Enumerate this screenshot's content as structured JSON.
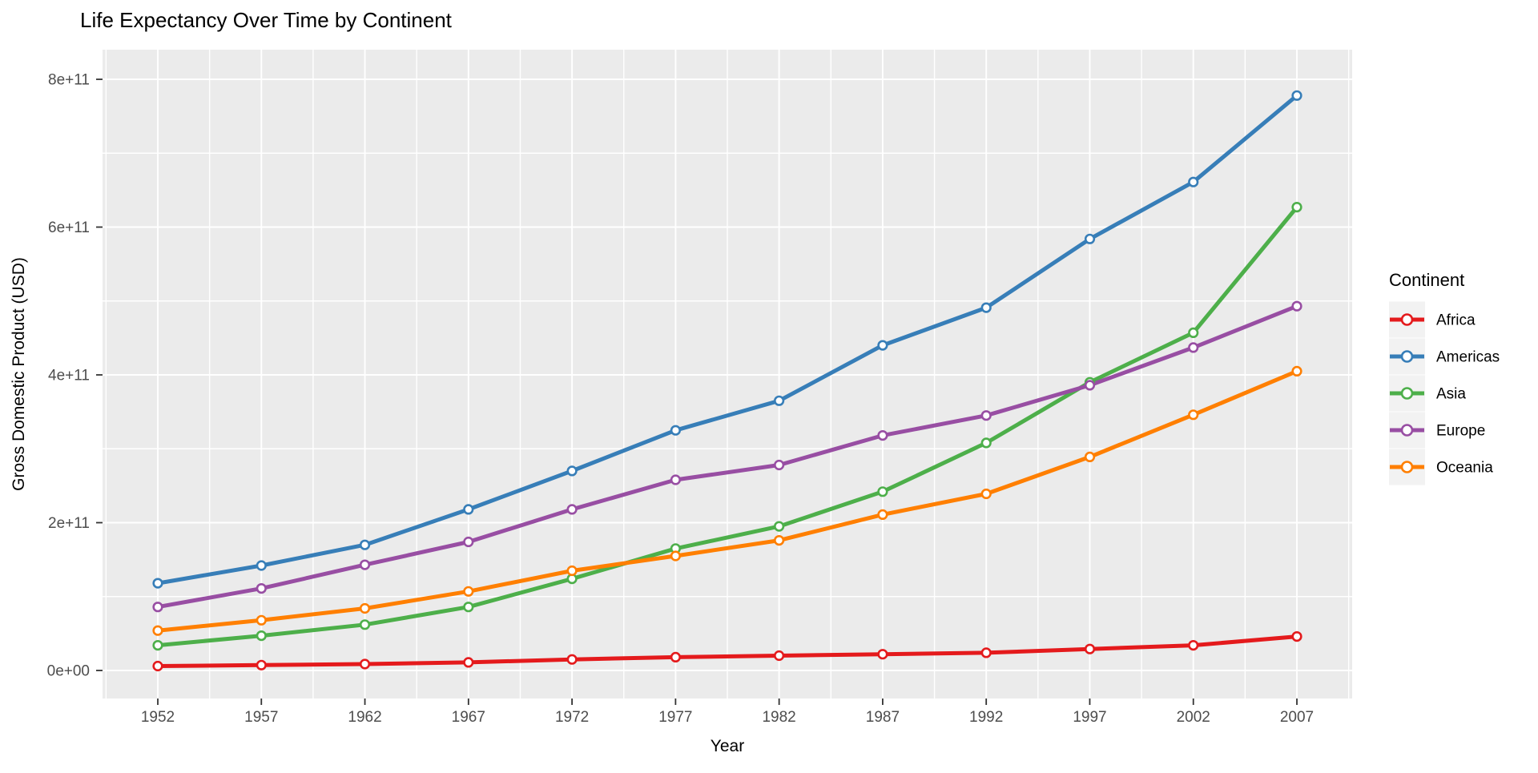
{
  "chart_data": {
    "type": "line",
    "title": "Life Expectancy Over Time by Continent",
    "xlabel": "Year",
    "ylabel": "Gross Domestic Product (USD)",
    "x": [
      1952,
      1957,
      1962,
      1967,
      1972,
      1977,
      1982,
      1987,
      1992,
      1997,
      2002,
      2007
    ],
    "x_tick_labels": [
      "1952",
      "1957",
      "1962",
      "1967",
      "1972",
      "1977",
      "1982",
      "1987",
      "1992",
      "1997",
      "2002",
      "2007"
    ],
    "y_ticks": [
      {
        "value": 0,
        "label": "0e+00"
      },
      {
        "value": 200000000000.0,
        "label": "2e+11"
      },
      {
        "value": 400000000000.0,
        "label": "4e+11"
      },
      {
        "value": 600000000000.0,
        "label": "6e+11"
      },
      {
        "value": 800000000000.0,
        "label": "8e+11"
      }
    ],
    "ylim": [
      0,
      800000000000.0
    ],
    "grid": true,
    "legend": {
      "title": "Continent",
      "position": "right"
    },
    "series": [
      {
        "name": "Africa",
        "color": "#E41A1C",
        "values": [
          6000000000.0,
          7300000000.0,
          8700000000.0,
          11000000000.0,
          15000000000.0,
          18000000000.0,
          20000000000.0,
          22000000000.0,
          24000000000.0,
          29000000000.0,
          34000000000.0,
          46000000000.0
        ]
      },
      {
        "name": "Americas",
        "color": "#377EB8",
        "values": [
          118000000000.0,
          142000000000.0,
          170000000000.0,
          218000000000.0,
          270000000000.0,
          325000000000.0,
          365000000000.0,
          440000000000.0,
          491000000000.0,
          584000000000.0,
          661000000000.0,
          778000000000.0
        ]
      },
      {
        "name": "Asia",
        "color": "#4DAF4A",
        "values": [
          34000000000.0,
          47000000000.0,
          62000000000.0,
          86000000000.0,
          124000000000.0,
          165000000000.0,
          195000000000.0,
          242000000000.0,
          308000000000.0,
          390000000000.0,
          457000000000.0,
          627000000000.0
        ]
      },
      {
        "name": "Europe",
        "color": "#984EA3",
        "values": [
          86000000000.0,
          111000000000.0,
          143000000000.0,
          174000000000.0,
          218000000000.0,
          258000000000.0,
          278000000000.0,
          318000000000.0,
          345000000000.0,
          386000000000.0,
          437000000000.0,
          493000000000.0
        ]
      },
      {
        "name": "Oceania",
        "color": "#FF7F00",
        "values": [
          54000000000.0,
          68000000000.0,
          84000000000.0,
          107000000000.0,
          135000000000.0,
          155000000000.0,
          176000000000.0,
          211000000000.0,
          239000000000.0,
          289000000000.0,
          346000000000.0,
          405000000000.0
        ]
      }
    ]
  },
  "style": {
    "panel_bg": "#EBEBEB",
    "grid_color": "#FFFFFF",
    "legend_key_bg": "#F2F2F2",
    "tick_text_color": "#4D4D4D",
    "tick_mark_color": "#333333",
    "title_color": "#000000"
  }
}
